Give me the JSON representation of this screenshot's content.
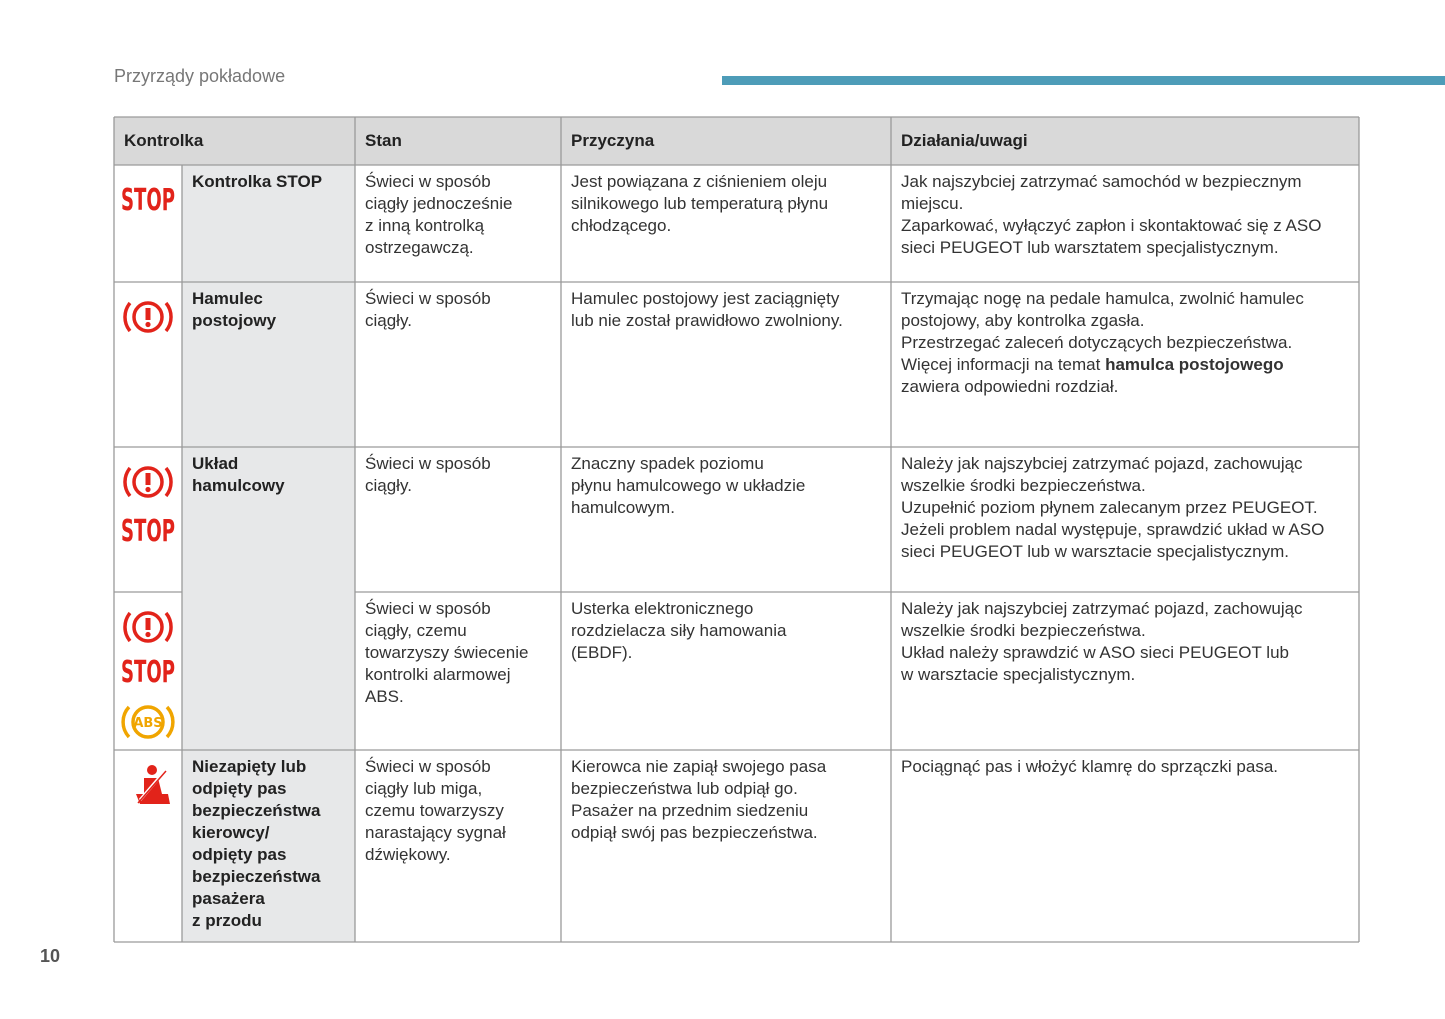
{
  "header": {
    "section": "Przyrządy pokładowe"
  },
  "table": {
    "columns": [
      "Kontrolka",
      "Stan",
      "Przyczyna",
      "Działania/uwagi"
    ],
    "rows": [
      {
        "icon_labels": [
          "STOP"
        ],
        "name": [
          "Kontrolka STOP"
        ],
        "state": [
          "Świeci w sposób",
          "ciągły jednocześnie",
          "z inną kontrolką",
          "ostrzegawczą."
        ],
        "cause": [
          "Jest powiązana z ciśnieniem oleju",
          "silnikowego lub temperaturą płynu",
          "chłodzącego."
        ],
        "actions": [
          "Jak najszybciej zatrzymać samochód w bezpiecznym",
          "miejscu.",
          "Zaparkować, wyłączyć zapłon i skontaktować się z ASO",
          "sieci PEUGEOT lub warsztatem specjalistycznym."
        ]
      },
      {
        "name": [
          "Hamulec",
          "postojowy"
        ],
        "state": [
          "Świeci w sposób",
          "ciągły."
        ],
        "cause": [
          "Hamulec postojowy jest zaciągnięty",
          "lub nie został prawidłowo zwolniony."
        ],
        "actions": [
          "Trzymając nogę na pedale hamulca, zwolnić hamulec",
          "postojowy, aby kontrolka zgasła.",
          "Przestrzegać zaleceń dotyczących bezpieczeństwa.",
          {
            "text": "Więcej informacji na temat ",
            "bold": "hamulca postojowego"
          },
          "zawiera odpowiedni rozdział."
        ]
      },
      {
        "icon_labels": [
          "STOP"
        ],
        "name": [
          "Układ",
          "hamulcowy"
        ],
        "state": [
          "Świeci w sposób",
          "ciągły."
        ],
        "cause": [
          "Znaczny spadek poziomu",
          "płynu hamulcowego w układzie",
          "hamulcowym."
        ],
        "actions": [
          "Należy jak najszybciej zatrzymać pojazd, zachowując",
          "wszelkie środki bezpieczeństwa.",
          "Uzupełnić poziom płynem zalecanym przez PEUGEOT.",
          "Jeżeli problem nadal występuje, sprawdzić układ w ASO",
          "sieci PEUGEOT lub w warsztacie specjalistycznym."
        ]
      },
      {
        "icon_labels": [
          "STOP",
          "ABS"
        ],
        "state": [
          "Świeci w sposób",
          "ciągły, czemu",
          "towarzyszy świecenie",
          "kontrolki alarmowej",
          "ABS."
        ],
        "cause": [
          "Usterka elektronicznego",
          "rozdzielacza siły hamowania",
          "(EBDF)."
        ],
        "actions": [
          "Należy jak najszybciej zatrzymać pojazd, zachowując",
          "wszelkie środki bezpieczeństwa.",
          "Układ należy sprawdzić w ASO sieci PEUGEOT lub",
          "w warsztacie specjalistycznym."
        ]
      },
      {
        "name": [
          "Niezapięty lub",
          "odpięty pas",
          "bezpieczeństwa",
          "kierowcy/",
          "odpięty pas",
          "bezpieczeństwa",
          "pasażera",
          "z przodu"
        ],
        "state": [
          "Świeci w sposób",
          "ciągły lub miga,",
          "czemu towarzyszy",
          "narastający sygnał",
          "dźwiękowy."
        ],
        "cause": [
          "Kierowca nie zapiął swojego pasa",
          "bezpieczeństwa lub odpiął go.",
          "Pasażer na przednim siedzeniu",
          "odpiął swój pas bezpieczeństwa."
        ],
        "actions": [
          "Pociągnąć pas i włożyć klamrę do sprzączki pasa."
        ]
      }
    ]
  },
  "page_number": "10"
}
